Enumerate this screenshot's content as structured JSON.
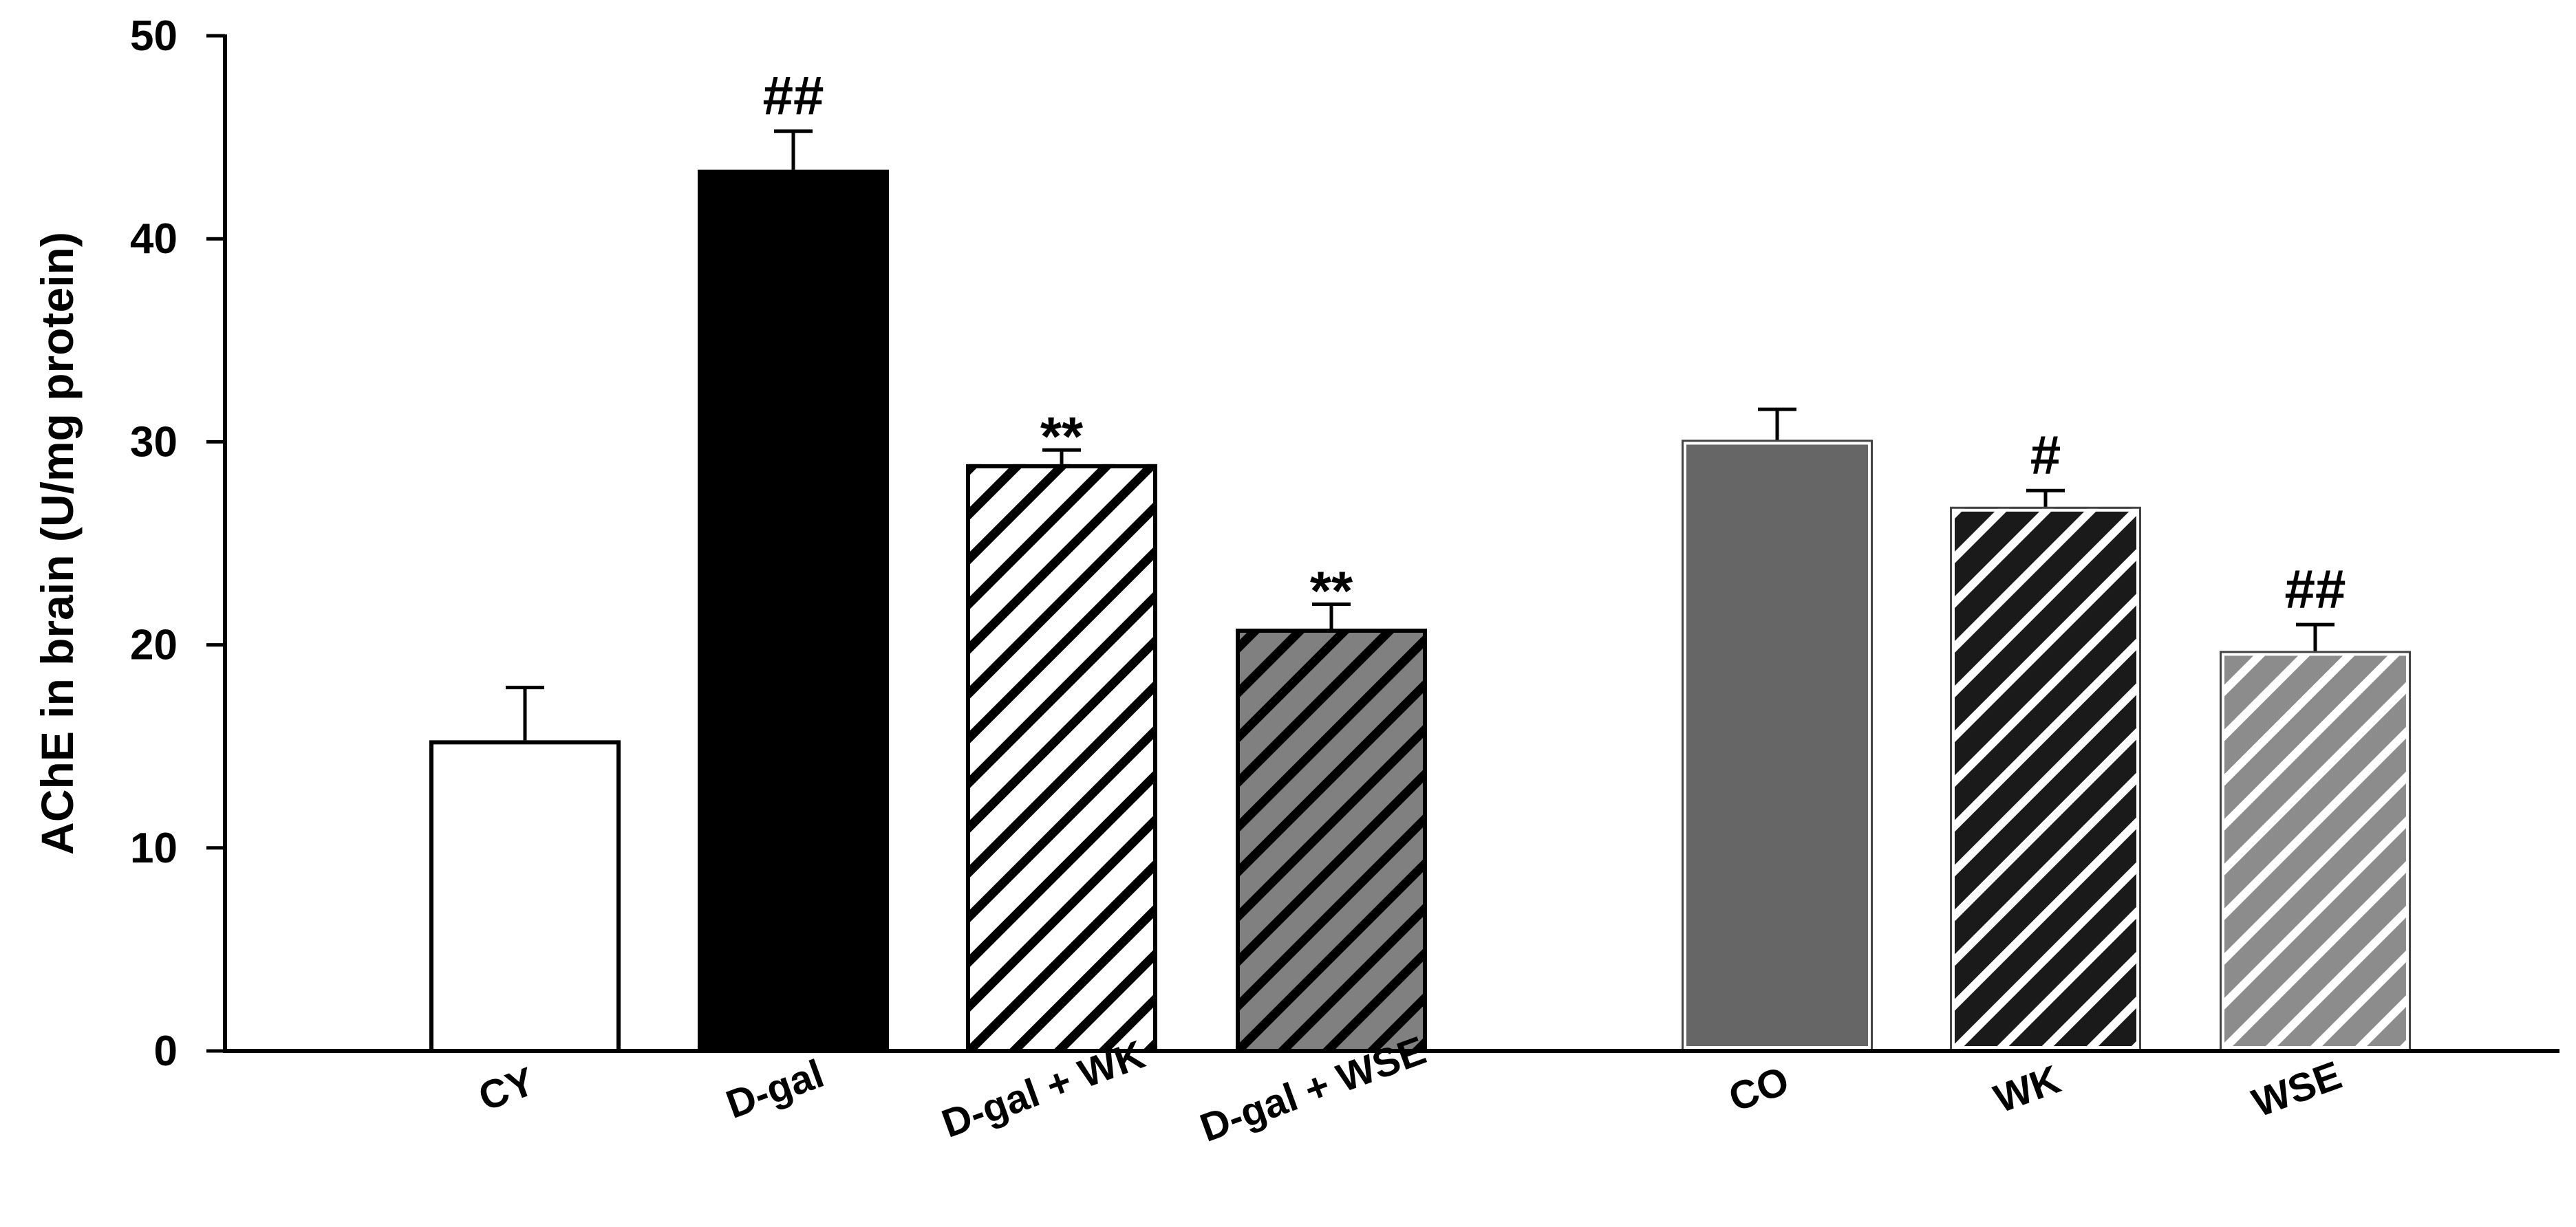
{
  "chart_data": {
    "type": "bar",
    "title": "",
    "xlabel": "",
    "ylabel": "AChE in brain (U/mg protein)",
    "ylim": [
      0,
      50
    ],
    "yticks": [
      0,
      10,
      20,
      30,
      40,
      50
    ],
    "grid": false,
    "legend": "none",
    "categories": [
      "CY",
      "D-gal",
      "D-gal + WK",
      "D-gal + WSE",
      "CO",
      "WK",
      "WSE"
    ],
    "groups": [
      [
        "CY",
        "D-gal",
        "D-gal + WK",
        "D-gal + WSE"
      ],
      [
        "CO",
        "WK",
        "WSE"
      ]
    ],
    "values": [
      15.3,
      43.4,
      28.9,
      20.8,
      30.1,
      26.8,
      19.7
    ],
    "errors": [
      2.6,
      1.9,
      0.7,
      1.2,
      1.5,
      0.8,
      1.3
    ],
    "annotations": [
      "",
      "##",
      "**",
      "**",
      "",
      "#",
      "##"
    ],
    "styles": [
      {
        "fill": "#ffffff",
        "hatch": "none",
        "hatch_color": "",
        "edge": "#000000"
      },
      {
        "fill": "#000000",
        "hatch": "none",
        "hatch_color": "",
        "edge": "#000000"
      },
      {
        "fill": "#ffffff",
        "hatch": "diagonal",
        "hatch_color": "#000000",
        "edge": "#000000"
      },
      {
        "fill": "#808080",
        "hatch": "diagonal",
        "hatch_color": "#000000",
        "edge": "#000000"
      },
      {
        "fill": "#666666",
        "hatch": "none",
        "hatch_color": "",
        "edge": "#ffffff"
      },
      {
        "fill": "#1a1a1a",
        "hatch": "diagonal",
        "hatch_color": "#ffffff",
        "edge": "#ffffff"
      },
      {
        "fill": "#8c8c8c",
        "hatch": "diagonal",
        "hatch_color": "#ffffff",
        "edge": "#ffffff"
      }
    ]
  }
}
